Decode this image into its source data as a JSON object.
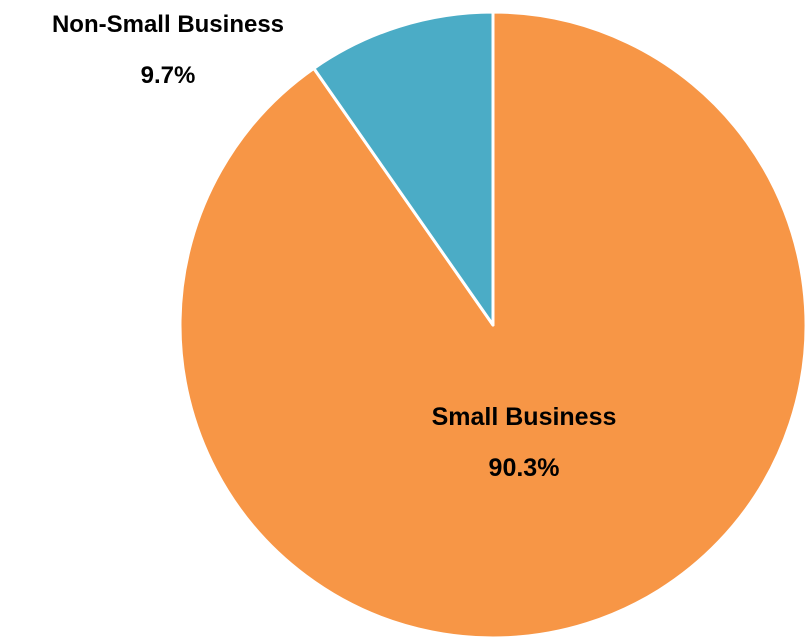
{
  "chart_data": {
    "type": "pie",
    "title": "",
    "categories": [
      "Non-Small Business",
      "Small Business"
    ],
    "values": [
      9.7,
      90.3
    ],
    "unit": "%",
    "colors": [
      "#4bacc6",
      "#f79646"
    ],
    "slice_border_color": "#ffffff",
    "start": "12 o'clock, clockwise: Small Business first",
    "labels": [
      {
        "category": "Non-Small Business",
        "value_text": "9.7%",
        "placement": "outside top-left"
      },
      {
        "category": "Small Business",
        "value_text": "90.3%",
        "placement": "inside"
      }
    ]
  }
}
